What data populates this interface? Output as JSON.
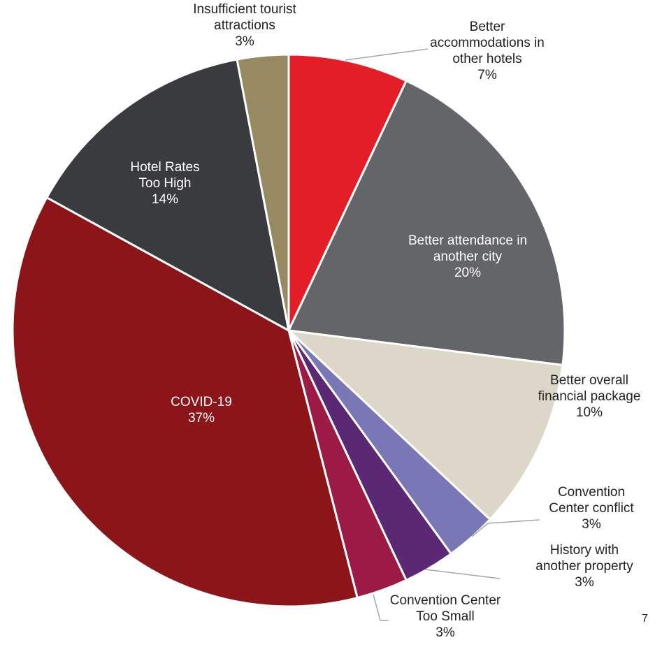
{
  "chart_data": {
    "type": "pie",
    "title": "",
    "slices": [
      {
        "label": "Better accommodations in other hotels",
        "lines": [
          "Better",
          "accommodations in",
          "other hotels",
          "7%"
        ],
        "value": 7,
        "color": "#e31e26"
      },
      {
        "label": "Better attendance in another city",
        "lines": [
          "Better attendance in",
          "another city",
          "20%"
        ],
        "value": 20,
        "color": "#646569"
      },
      {
        "label": "Better overall financial package",
        "lines": [
          "Better overall",
          "financial package",
          "10%"
        ],
        "value": 10,
        "color": "#dcd7c8"
      },
      {
        "label": "Convention Center conflict",
        "lines": [
          "Convention",
          "Center conflict",
          "3%"
        ],
        "value": 3,
        "color": "#7a77b6"
      },
      {
        "label": "History with another property",
        "lines": [
          "History with",
          "another property",
          "3%"
        ],
        "value": 3,
        "color": "#5b2873"
      },
      {
        "label": "Convention Center Too Small",
        "lines": [
          "Convention Center",
          "Too Small",
          "3%"
        ],
        "value": 3,
        "color": "#9c1b46"
      },
      {
        "label": "COVID-19",
        "lines": [
          "COVID-19",
          "37%"
        ],
        "value": 37,
        "color": "#8b1518"
      },
      {
        "label": "Hotel Rates Too High",
        "lines": [
          "Hotel Rates",
          "Too High",
          "14%"
        ],
        "value": 14,
        "color": "#3a3b3f"
      },
      {
        "label": "Insufficient tourist attractions",
        "lines": [
          "Insufficient tourist",
          "attractions",
          "3%"
        ],
        "value": 3,
        "color": "#978a62"
      }
    ]
  },
  "page_number": "7"
}
